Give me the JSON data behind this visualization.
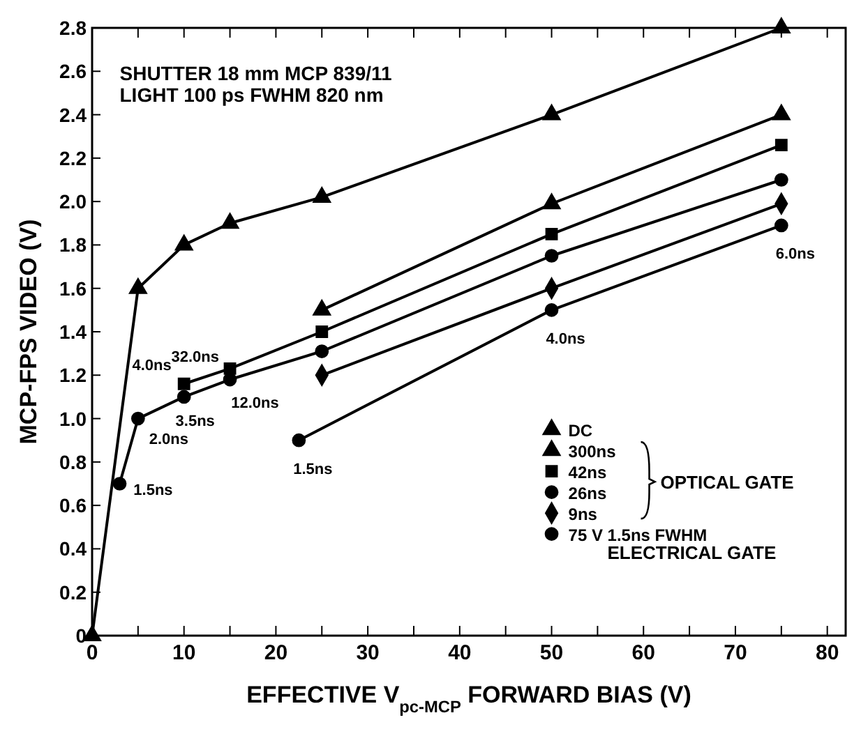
{
  "chart_data": {
    "type": "line",
    "xlabel": "EFFECTIVE V$_{pc-MCP}$ FORWARD BIAS (V)",
    "ylabel": "MCP-FPS VIDEO (V)",
    "xlim": [
      0,
      82
    ],
    "ylim": [
      0,
      2.8
    ],
    "xticks": [
      0,
      {
        "value": 5,
        "label": null
      },
      10,
      {
        "value": 15,
        "label": null
      },
      20,
      {
        "value": 25,
        "label": null
      },
      30,
      {
        "value": 35,
        "label": null
      },
      40,
      {
        "value": 45,
        "label": null
      },
      50,
      {
        "value": 55,
        "label": null
      },
      60,
      {
        "value": 65,
        "label": null
      },
      70,
      {
        "value": 75,
        "label": null
      },
      80
    ],
    "yticks": [
      0,
      0.2,
      0.4,
      0.6,
      0.8,
      {
        "value": 1,
        "label": "1.0"
      },
      1.2,
      1.4,
      1.6,
      1.8,
      {
        "value": 2,
        "label": "2.0"
      },
      2.2,
      2.4,
      2.6,
      2.8
    ],
    "grid": false,
    "legend": "bottom right",
    "line_style": "solid",
    "series": [
      {
        "name": "DC",
        "color": "#000000",
        "marker": "triangle",
        "x": [
          0,
          5,
          10,
          15,
          25,
          50,
          75
        ],
        "values": [
          0,
          1.6,
          1.8,
          1.9,
          2.02,
          2.4,
          2.8
        ]
      },
      {
        "name": "300ns",
        "color": "#000000",
        "marker": "triangle",
        "x": [
          25,
          50,
          75
        ],
        "values": [
          1.5,
          1.99,
          2.4
        ]
      },
      {
        "name": "42ns",
        "color": "#000000",
        "marker": "square",
        "x": [
          10,
          15,
          25,
          50,
          75
        ],
        "values": [
          1.16,
          1.23,
          1.4,
          1.85,
          2.26
        ]
      },
      {
        "name": "26ns",
        "color": "#000000",
        "marker": "circle",
        "x": [
          3,
          5,
          10,
          15,
          25,
          50,
          75
        ],
        "values": [
          0.7,
          1.0,
          1.1,
          1.18,
          1.31,
          1.75,
          2.1
        ]
      },
      {
        "name": "9ns",
        "color": "#000000",
        "marker": "diamond",
        "x": [
          25,
          50,
          75
        ],
        "values": [
          1.2,
          1.6,
          1.99
        ]
      },
      {
        "name": "75 V 1.5ns FWHM",
        "color": "#000000",
        "marker": "circle",
        "x": [
          22.5,
          50,
          75
        ],
        "values": [
          0.9,
          1.5,
          1.89
        ]
      }
    ],
    "annotations": [
      "SHUTTER 18 mm MCP 839/11",
      "LIGHT 100 ps FWHM 820 nm",
      "OPTICAL GATE",
      "ELECTRICAL GATE",
      "4.0ns",
      {
        "text": "32.0ns",
        "x": 10,
        "y": 1.16
      },
      {
        "text": "3.5ns",
        "x": 10,
        "y": 1.1
      },
      {
        "text": "12.0ns",
        "x": 15,
        "y": 1.18
      },
      {
        "text": "2.0ns",
        "x": 5,
        "y": 1.0
      },
      {
        "text": "1.5ns",
        "x": 3,
        "y": 0.7
      },
      {
        "text": "1.5ns",
        "x": 22.5,
        "y": 0.9
      },
      {
        "text": "4.0ns",
        "x": 50,
        "y": 1.5
      },
      {
        "text": "6.0ns",
        "x": 75,
        "y": 1.89
      }
    ]
  }
}
